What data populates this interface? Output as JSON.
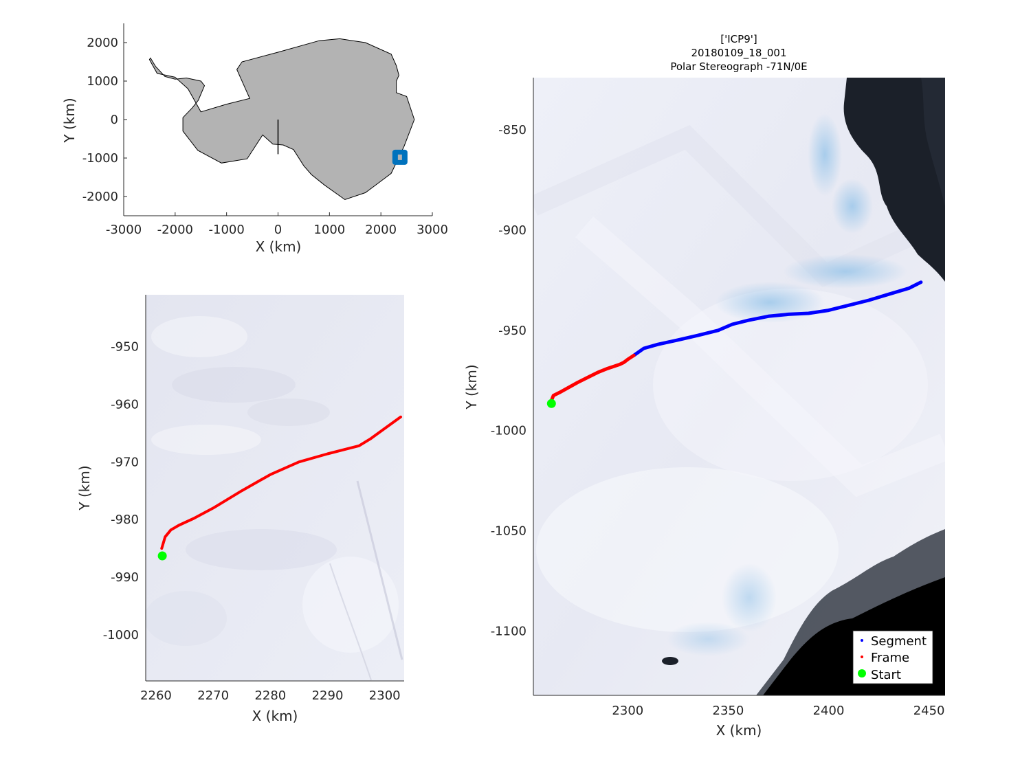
{
  "title_lines": [
    "['ICP9']",
    "20180109_18_001",
    "Polar Stereograph -71N/0E"
  ],
  "colors": {
    "segment": "#0000ff",
    "frame": "#ff0000",
    "start": "#00ff00",
    "land": "#b3b3b3",
    "marker": "#0072bd",
    "ocean": "#1a1f28",
    "ice": "#eceef7"
  },
  "chart_data": [
    {
      "id": "overview",
      "type": "map",
      "xlabel": "X (km)",
      "ylabel": "Y (km)",
      "xlim": [
        -3000,
        3000
      ],
      "ylim": [
        -2500,
        2500
      ],
      "xticks": [
        -3000,
        -2000,
        -1000,
        0,
        1000,
        2000,
        3000
      ],
      "yticks": [
        -2000,
        -1000,
        0,
        1000,
        2000
      ],
      "marker": {
        "x": 2370,
        "y": -980
      },
      "coastline": [
        [
          -2480,
          1600
        ],
        [
          -2380,
          1380
        ],
        [
          -2200,
          1120
        ],
        [
          -2000,
          1050
        ],
        [
          -1780,
          1080
        ],
        [
          -1500,
          1000
        ],
        [
          -1430,
          880
        ],
        [
          -1550,
          500
        ],
        [
          -1670,
          300
        ],
        [
          -1850,
          50
        ],
        [
          -1850,
          -300
        ],
        [
          -1560,
          -800
        ],
        [
          -1100,
          -1130
        ],
        [
          -600,
          -1020
        ],
        [
          -300,
          -400
        ],
        [
          -100,
          -640
        ],
        [
          100,
          -660
        ],
        [
          300,
          -780
        ],
        [
          500,
          -1200
        ],
        [
          650,
          -1430
        ],
        [
          900,
          -1700
        ],
        [
          1300,
          -2080
        ],
        [
          1700,
          -1900
        ],
        [
          2000,
          -1600
        ],
        [
          2200,
          -1400
        ],
        [
          2450,
          -700
        ],
        [
          2650,
          0
        ],
        [
          2500,
          600
        ],
        [
          2300,
          700
        ],
        [
          2300,
          1000
        ],
        [
          2350,
          1150
        ],
        [
          2300,
          1400
        ],
        [
          2200,
          1700
        ],
        [
          1700,
          2000
        ],
        [
          1200,
          2100
        ],
        [
          800,
          2050
        ],
        [
          0,
          1750
        ],
        [
          -700,
          1500
        ],
        [
          -800,
          1300
        ],
        [
          -550,
          550
        ],
        [
          -1000,
          400
        ],
        [
          -1500,
          200
        ],
        [
          -1750,
          800
        ],
        [
          -2000,
          1100
        ],
        [
          -2350,
          1200
        ],
        [
          -2500,
          1560
        ]
      ],
      "boundary_line": [
        [
          0,
          -900
        ],
        [
          0,
          0
        ]
      ]
    },
    {
      "id": "detail",
      "type": "map",
      "xlabel": "X (km)",
      "ylabel": "Y (km)",
      "xlim": [
        2258.2,
        2303.4
      ],
      "ylim": [
        -1008.0,
        -941.0
      ],
      "xticks": [
        2260,
        2270,
        2280,
        2290,
        2300
      ],
      "yticks": [
        -950,
        -960,
        -970,
        -980,
        -990,
        -1000
      ],
      "series": [
        {
          "style": "frame",
          "x": [
            2261,
            2261.6,
            2262.6,
            2264,
            2266.6,
            2270,
            2275,
            2280,
            2285,
            2290,
            2295.5,
            2297.5,
            2300,
            2302.8
          ],
          "y": [
            -985,
            -983,
            -981.8,
            -981,
            -979.8,
            -978,
            -975,
            -972.2,
            -970,
            -968.6,
            -967.2,
            -966,
            -964.2,
            -962.2
          ]
        }
      ],
      "start": {
        "x": 2261.1,
        "y": -986.3
      }
    },
    {
      "id": "main",
      "type": "map",
      "xlabel": "X (km)",
      "ylabel": "Y (km)",
      "xlim": [
        2253,
        2458
      ],
      "ylim": [
        -1132,
        -824
      ],
      "xticks": [
        2300,
        2350,
        2400,
        2450
      ],
      "yticks": [
        -850,
        -900,
        -950,
        -1000,
        -1050,
        -1100
      ],
      "series": [
        {
          "style": "segment",
          "x": [
            2303,
            2308,
            2315,
            2325,
            2335,
            2345,
            2352,
            2360,
            2370,
            2380,
            2390,
            2400,
            2410,
            2420,
            2430,
            2440,
            2444,
            2446
          ],
          "y": [
            -962.5,
            -959,
            -957,
            -954.8,
            -952.5,
            -950,
            -947,
            -945,
            -943,
            -942,
            -941.5,
            -940,
            -937.5,
            -935,
            -932,
            -929,
            -927,
            -926
          ]
        },
        {
          "style": "frame",
          "x": [
            2262,
            2263,
            2266,
            2270,
            2275,
            2280,
            2285,
            2290,
            2296,
            2298,
            2300,
            2303
          ],
          "y": [
            -985,
            -982.5,
            -981,
            -978.8,
            -976,
            -973.5,
            -971,
            -969,
            -967,
            -966,
            -964.5,
            -962.5
          ]
        }
      ],
      "start": {
        "x": 2262,
        "y": -986.5
      },
      "legend": {
        "position": "bottom-right",
        "entries": [
          {
            "label": "Segment",
            "style": "segment"
          },
          {
            "label": "Frame",
            "style": "frame"
          },
          {
            "label": "Start",
            "style": "start"
          }
        ]
      }
    }
  ]
}
